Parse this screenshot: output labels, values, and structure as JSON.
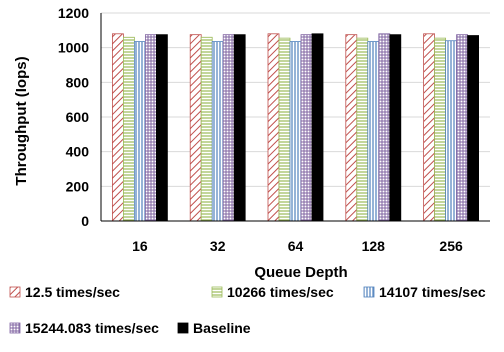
{
  "chart_data": {
    "type": "bar",
    "title": "",
    "xlabel": "Queue Depth",
    "ylabel": "Throughput (Iops)",
    "ylim": [
      0,
      1200
    ],
    "yticks": [
      0,
      200,
      400,
      600,
      800,
      1000,
      1200
    ],
    "categories": [
      "16",
      "32",
      "64",
      "128",
      "256"
    ],
    "grid": "horizontal",
    "legend_position": "bottom",
    "series": [
      {
        "name": "12.5 times/sec",
        "values": [
          1080,
          1075,
          1080,
          1075,
          1080
        ],
        "color": "#c0504d",
        "pattern": "diagonal-hatch"
      },
      {
        "name": "10266 times/sec",
        "values": [
          1060,
          1060,
          1055,
          1055,
          1055
        ],
        "color": "#9bbb59",
        "pattern": "horizontal-lines"
      },
      {
        "name": "14107 times/sec",
        "values": [
          1035,
          1035,
          1035,
          1035,
          1040
        ],
        "color": "#4f81bd",
        "pattern": "vertical-lines"
      },
      {
        "name": "15244.083 times/sec",
        "values": [
          1075,
          1075,
          1075,
          1080,
          1075
        ],
        "color": "#8064a2",
        "pattern": "grid"
      },
      {
        "name": "Baseline",
        "values": [
          1075,
          1075,
          1080,
          1075,
          1070
        ],
        "color": "#000000",
        "pattern": "solid"
      }
    ]
  }
}
